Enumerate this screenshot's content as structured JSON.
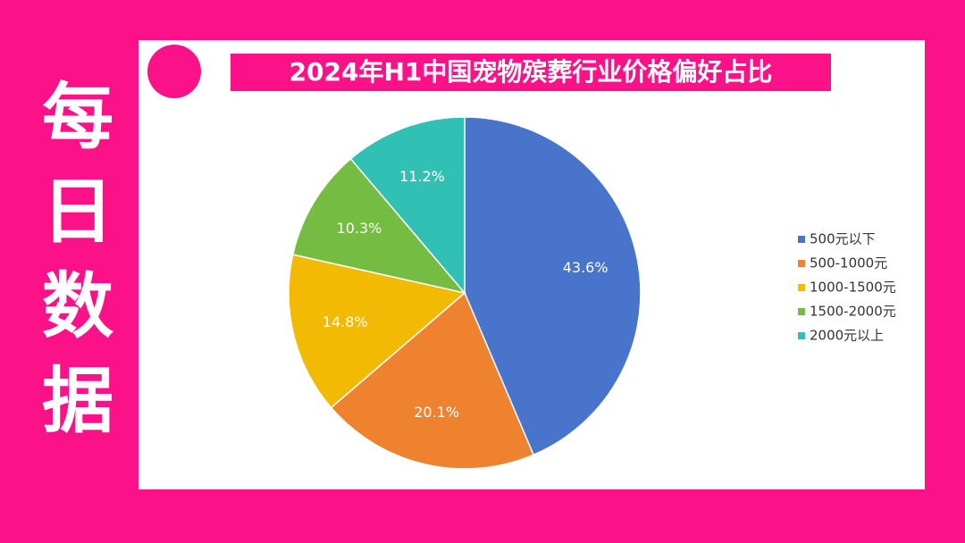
{
  "side_title": "每日数据",
  "chart_data": {
    "type": "pie",
    "title": "2024年H1中国宠物殡葬行业价格偏好占比",
    "categories": [
      "500元以下",
      "500-1000元",
      "1000-1500元",
      "1500-2000元",
      "2000元以上"
    ],
    "values": [
      43.6,
      20.1,
      14.8,
      10.3,
      11.2
    ],
    "value_labels": [
      "43.6%",
      "20.1%",
      "14.8%",
      "10.3%",
      "11.2%"
    ],
    "colors": [
      "#4874cb",
      "#ee822f",
      "#f2ba02",
      "#75bd42",
      "#30c0b4"
    ],
    "legend": "right"
  }
}
